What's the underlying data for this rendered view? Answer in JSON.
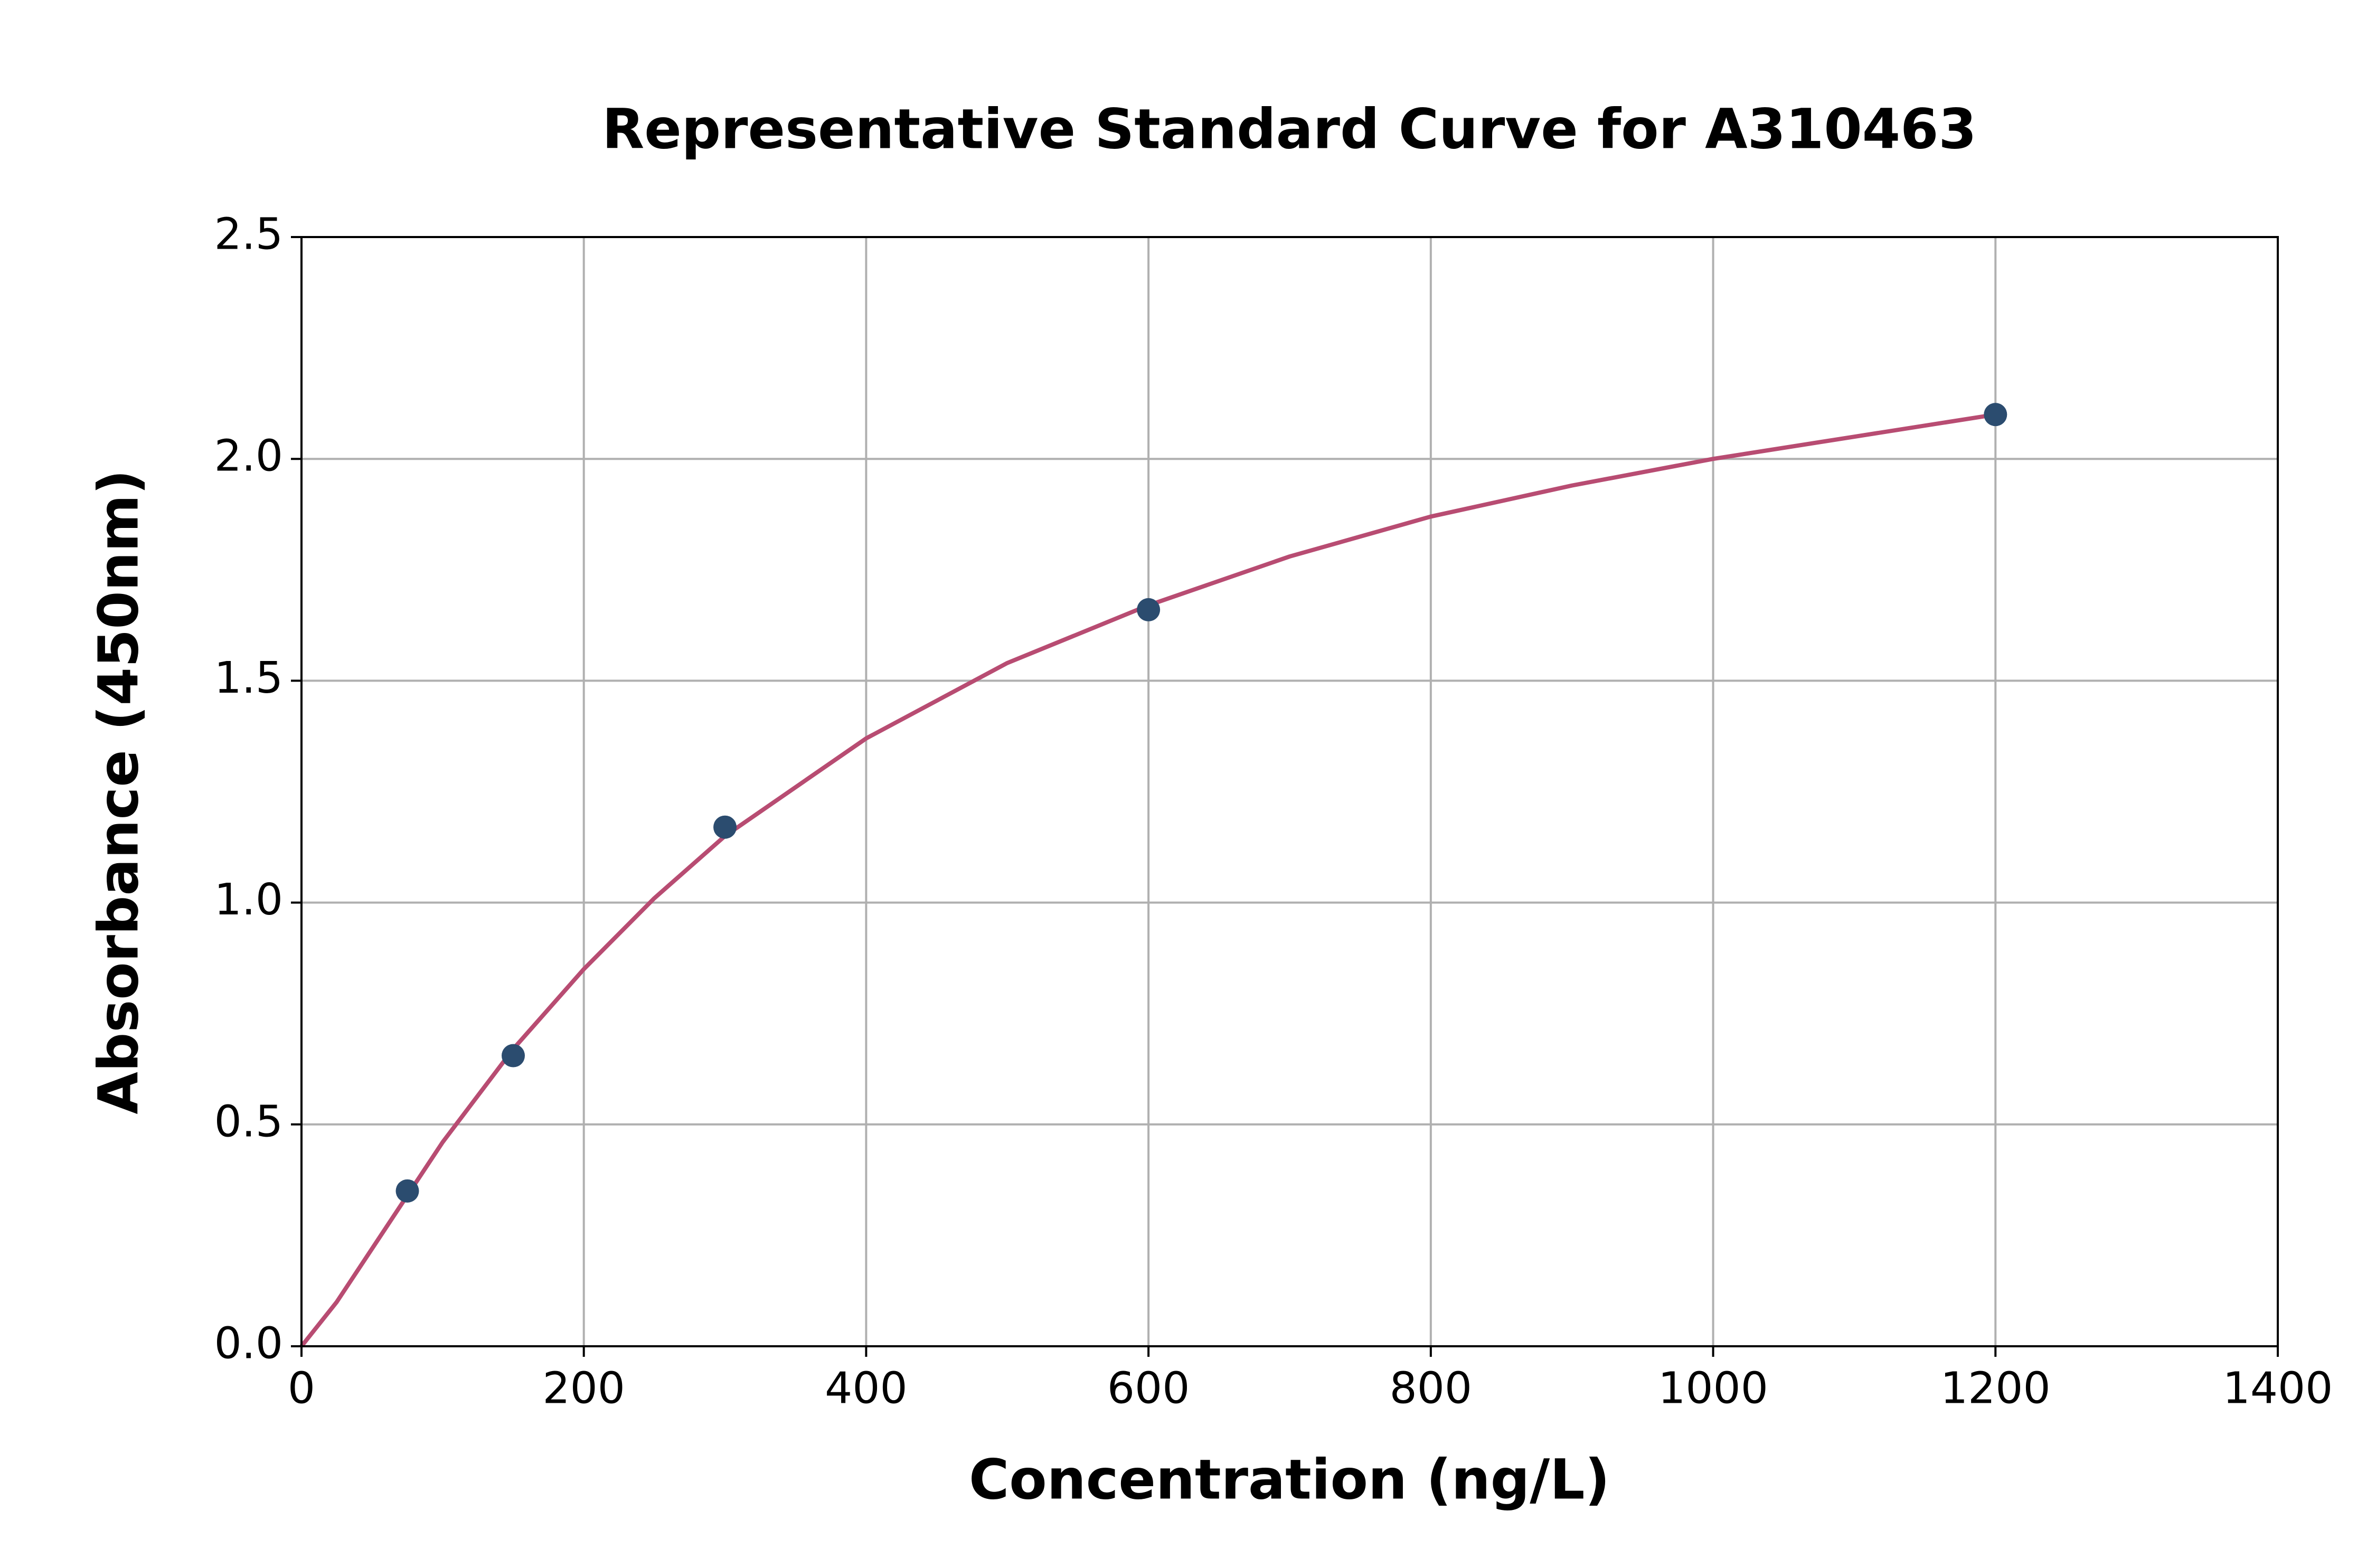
{
  "chart_data": {
    "type": "scatter",
    "title": "Representative Standard Curve for A310463",
    "xlabel": "Concentration (ng/L)",
    "ylabel": "Absorbance (450nm)",
    "xlim": [
      0,
      1400
    ],
    "ylim": [
      0,
      2.5
    ],
    "xticks": [
      0,
      200,
      400,
      600,
      800,
      1000,
      1200,
      1400
    ],
    "yticks": [
      {
        "value": 0,
        "label": "0.0"
      },
      0.5,
      {
        "value": 1,
        "label": "1.0"
      },
      1.5,
      {
        "value": 2,
        "label": "2.0"
      },
      2.5
    ],
    "grid": true,
    "series": [
      {
        "type": "line",
        "color": "#b84c72",
        "x": [
          0,
          25,
          50,
          75,
          100,
          150,
          200,
          250,
          300,
          400,
          500,
          600,
          700,
          800,
          900,
          1000,
          1100,
          1200
        ],
        "values": [
          0,
          0.1,
          0.22,
          0.34,
          0.46,
          0.67,
          0.85,
          1.01,
          1.15,
          1.37,
          1.54,
          1.67,
          1.78,
          1.87,
          1.94,
          2.0,
          2.05,
          2.1
        ]
      },
      {
        "type": "scatter",
        "color": "#2b4c6f",
        "x": [
          75,
          150,
          300,
          600,
          1200
        ],
        "values": [
          0.35,
          0.655,
          1.17,
          1.66,
          2.1
        ]
      }
    ]
  }
}
